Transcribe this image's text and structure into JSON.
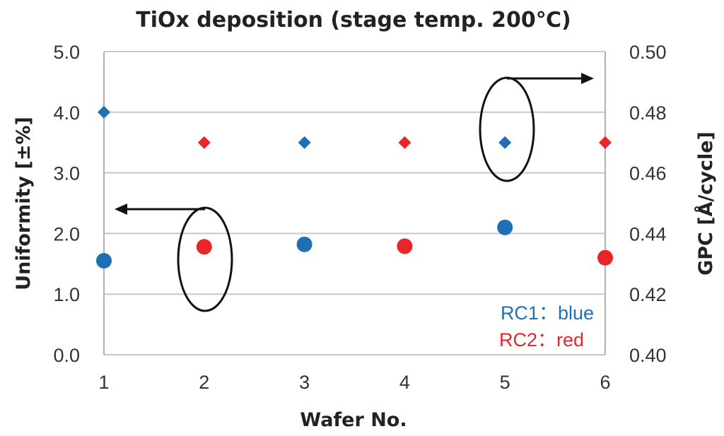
{
  "chart_data": {
    "type": "scatter",
    "title": "TiOx deposition (stage temp. 200℃)",
    "xlabel": "Wafer No.",
    "ylabel_left": "Uniformity [±%]",
    "ylabel_right": "GPC [Å/cycle]",
    "x_ticks": [
      "1",
      "2",
      "3",
      "4",
      "5",
      "6"
    ],
    "y_left_ticks": [
      "0.0",
      "1.0",
      "2.0",
      "3.0",
      "4.0",
      "5.0"
    ],
    "y_right_ticks": [
      "0.40",
      "0.42",
      "0.44",
      "0.46",
      "0.48",
      "0.50"
    ],
    "ylim_left": [
      0,
      5
    ],
    "ylim_right": [
      0.4,
      0.5
    ],
    "xlim": [
      1,
      6
    ],
    "grid": "horizontal",
    "colors": {
      "RC1": "#1f6fb5",
      "RC2": "#e8262a"
    },
    "legend_items": [
      "RC1：blue",
      "RC2：red"
    ],
    "legend_position": "bottom-right",
    "series": [
      {
        "marker": "circle",
        "axis": "left",
        "x": [
          1,
          3,
          5
        ],
        "y": [
          1.55,
          1.82,
          2.1
        ],
        "color": "#1f6fb5"
      },
      {
        "marker": "circle",
        "axis": "left",
        "x": [
          2,
          4,
          6
        ],
        "y": [
          1.78,
          1.79,
          1.6
        ],
        "color": "#e8262a"
      },
      {
        "marker": "diamond",
        "axis": "right",
        "x": [
          1,
          3,
          5
        ],
        "y": [
          0.48,
          0.47,
          0.47
        ],
        "color": "#1f6fb5"
      },
      {
        "marker": "diamond",
        "axis": "right",
        "x": [
          2,
          4,
          6
        ],
        "y": [
          0.47,
          0.47,
          0.47
        ],
        "color": "#e8262a"
      }
    ]
  }
}
